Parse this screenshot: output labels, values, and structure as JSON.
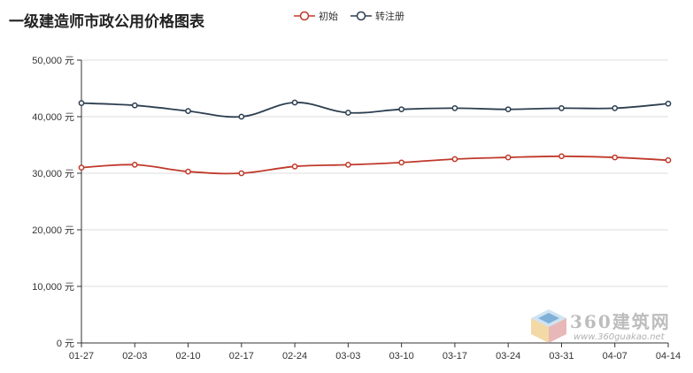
{
  "title": "一级建造师市政公用价格图表",
  "legend": [
    {
      "label": "初始",
      "color": "#c0392b"
    },
    {
      "label": "转注册",
      "color": "#2c3e50"
    }
  ],
  "watermark": {
    "brand": "360建筑网",
    "url": "www.360guakao.net"
  },
  "chart_data": {
    "type": "line",
    "title": "一级建造师市政公用价格图表",
    "categories": [
      "01-27",
      "02-03",
      "02-10",
      "02-17",
      "02-24",
      "03-03",
      "03-10",
      "03-17",
      "03-24",
      "03-31",
      "04-07",
      "04-14"
    ],
    "y_ticks": [
      "0 元",
      "10,000 元",
      "20,000 元",
      "30,000 元",
      "40,000 元",
      "50,000 元"
    ],
    "ylim": [
      0,
      50000
    ],
    "grid": true,
    "legend_position": "top-center",
    "series": [
      {
        "name": "初始",
        "color": "#c0392b",
        "values": [
          31000,
          31500,
          30300,
          30000,
          31200,
          31500,
          31900,
          32500,
          32800,
          33000,
          32800,
          32300
        ]
      },
      {
        "name": "转注册",
        "color": "#2c3e50",
        "values": [
          42400,
          42000,
          41000,
          40000,
          42500,
          40700,
          41300,
          41500,
          41300,
          41500,
          41500,
          42300
        ]
      }
    ]
  }
}
